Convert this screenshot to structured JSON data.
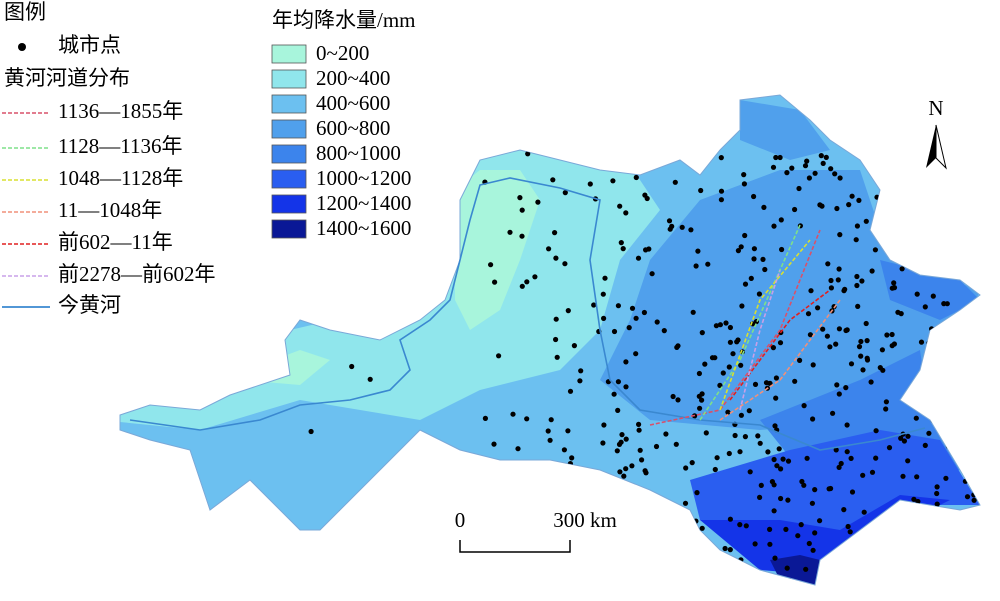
{
  "legend": {
    "title": "图例",
    "city": "城市点",
    "river_title": "黄河河道分布",
    "rivers": [
      {
        "label": "1136—1855年",
        "color": "#d9506a"
      },
      {
        "label": "1128—1136年",
        "color": "#7ee08a"
      },
      {
        "label": "1048—1128年",
        "color": "#d8e030"
      },
      {
        "label": "11—1048年",
        "color": "#f0907a"
      },
      {
        "label": "前602—11年",
        "color": "#e02020"
      },
      {
        "label": "前2278—前602年",
        "color": "#c8a0e8"
      }
    ],
    "current": {
      "label": "今黄河",
      "color": "#3a88d0"
    }
  },
  "precipitation": {
    "title": "年均降水量/mm",
    "classes": [
      {
        "label": "0~200",
        "color": "#a8f5dc"
      },
      {
        "label": "200~400",
        "color": "#90e6ec"
      },
      {
        "label": "400~600",
        "color": "#6cc0f0"
      },
      {
        "label": "600~800",
        "color": "#50a0ec"
      },
      {
        "label": "800~1000",
        "color": "#3c84ec"
      },
      {
        "label": "1000~1200",
        "color": "#2a5ef0"
      },
      {
        "label": "1200~1400",
        "color": "#1434e8"
      },
      {
        "label": "1400~1600",
        "color": "#0a1896"
      }
    ]
  },
  "north": "N",
  "scale": {
    "start": "0",
    "end": "300 km"
  }
}
